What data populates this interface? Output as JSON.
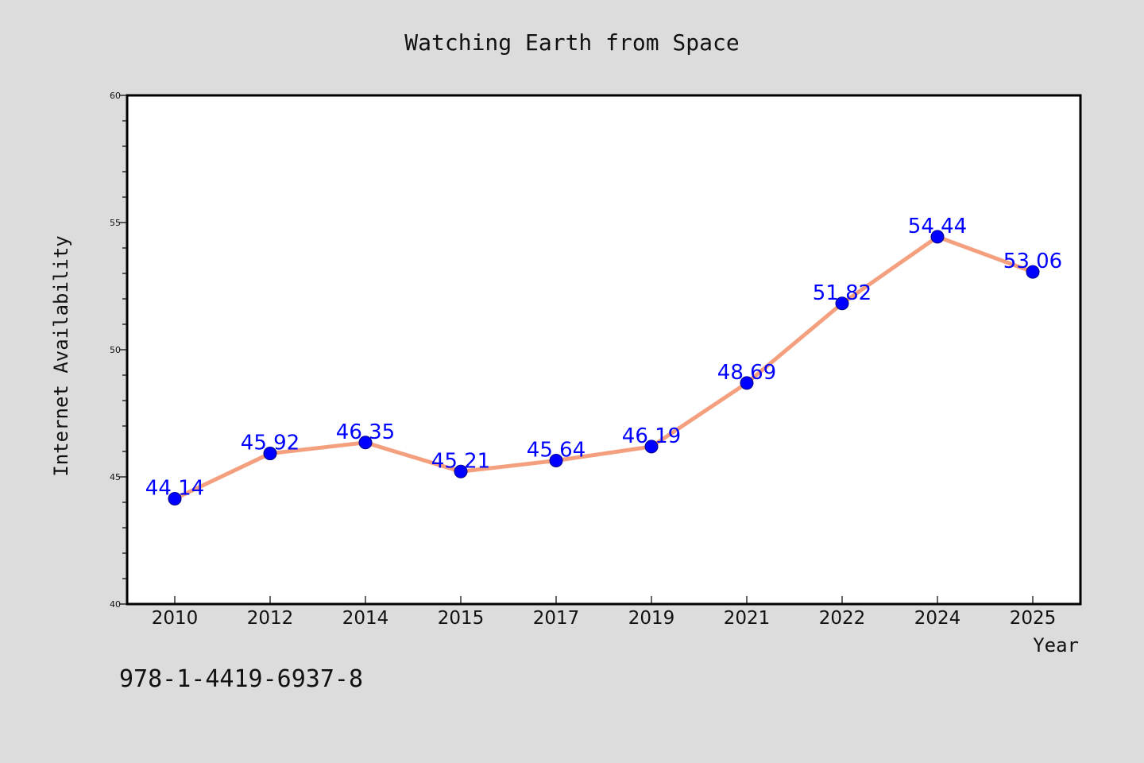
{
  "chart_data": {
    "type": "line",
    "title": "Watching Earth from Space",
    "xlabel": "Year",
    "ylabel": "Internet Availability",
    "categories": [
      "2010",
      "2012",
      "2014",
      "2015",
      "2017",
      "2019",
      "2021",
      "2022",
      "2024",
      "2025"
    ],
    "series": [
      {
        "values": [
          44.14,
          45.92,
          46.35,
          45.21,
          45.64,
          46.19,
          48.69,
          51.82,
          54.44,
          53.06
        ],
        "labels": [
          "44.14",
          "45.92",
          "46.35",
          "45.21",
          "45.64",
          "46.19",
          "48.69",
          "51.82",
          "54.44",
          "53.06"
        ]
      }
    ],
    "ylim": [
      40,
      60
    ],
    "yticks": [
      "40",
      "45",
      "50",
      "55",
      "60"
    ],
    "grid": false,
    "line_color": "#f4a07f",
    "marker_color": "#0000ff",
    "label_color": "#0000ff"
  },
  "footer_text": "978-1-4419-6937-8",
  "colors": {
    "background": "#dcdcdc",
    "plot_background": "#ffffff",
    "frame": "#000000"
  }
}
